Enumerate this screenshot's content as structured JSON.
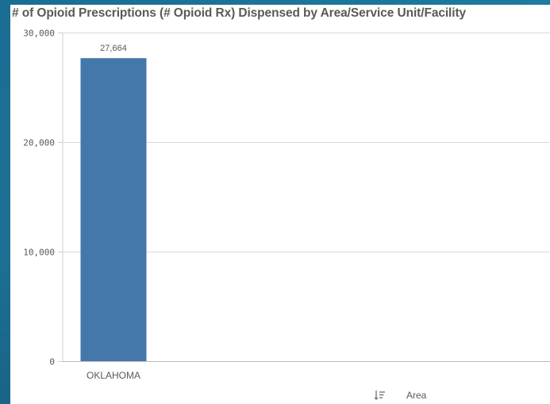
{
  "chart_data": {
    "type": "bar",
    "title": "# of Opioid Prescriptions (# Opioid Rx) Dispensed by Area/Service Unit/Facility",
    "categories": [
      "OKLAHOMA"
    ],
    "values": [
      27664
    ],
    "data_labels": [
      "27,664"
    ],
    "ylim": [
      0,
      30000
    ],
    "yticks": [
      {
        "value": 0,
        "label": "0"
      },
      {
        "value": 10000,
        "label": "10,000"
      },
      {
        "value": 20000,
        "label": "20,000"
      },
      {
        "value": 30000,
        "label": "30,000"
      }
    ],
    "xlabel": "",
    "ylabel": "",
    "grid": true,
    "bar_color": "#4477aa"
  },
  "footer": {
    "dimension_label": "Area",
    "sort_icon": "sort-icon"
  }
}
